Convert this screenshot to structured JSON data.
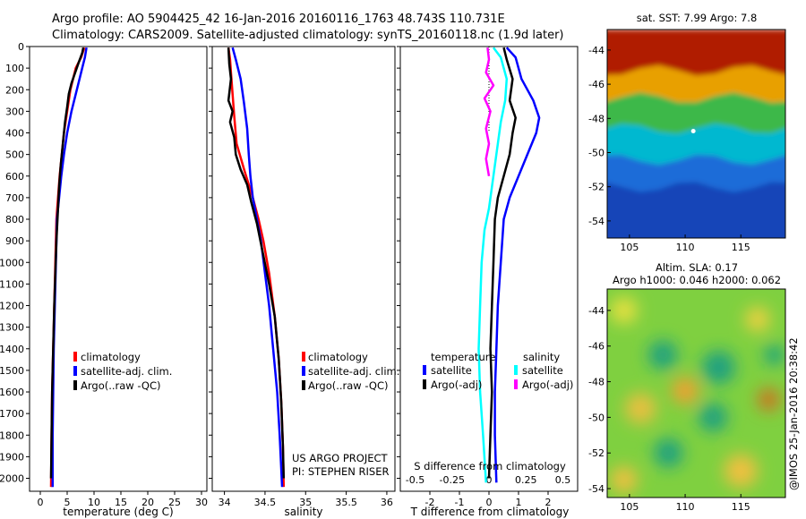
{
  "figure": {
    "title_line1": "Argo profile: AO 5904425_42 16-Jan-2016 20160116_1763 48.743S 110.731E",
    "title_line2": "Climatology: CARS2009. Satellite-adjusted climatology: synTS_20160118.nc (1.9d later)",
    "project_line1": "US ARGO PROJECT",
    "project_line2": "PI: STEPHEN RISER",
    "stamp": "@IMOS 25-Jan-2016 20:38:42"
  },
  "colors": {
    "climatology": "#ff0000",
    "satellite_adj": "#0000ff",
    "argo": "#000000",
    "sat_temp_diff": "#0000ff",
    "sat_sal_diff": "#00ffff",
    "argo_sal_diff": "#ff00ff"
  },
  "chart_data": [
    {
      "id": "temperature_profile",
      "type": "line",
      "xlabel": "temperature (deg C)",
      "xlim": [
        -2,
        31
      ],
      "ylim": [
        2060,
        0
      ],
      "xticks": [
        "0",
        "5",
        "10",
        "15",
        "20",
        "25",
        "30"
      ],
      "yticks": [
        "0",
        "100",
        "200",
        "300",
        "400",
        "500",
        "600",
        "700",
        "800",
        "900",
        "1000",
        "1100",
        "1200",
        "1300",
        "1400",
        "1500",
        "1600",
        "1700",
        "1800",
        "1900",
        "2000"
      ],
      "legend": [
        "climatology",
        "satellite-adj. clim.",
        "Argo(..raw -QC)"
      ],
      "series": [
        {
          "name": "climatology",
          "color_key": "climatology",
          "x": [
            8.2,
            7.6,
            6.6,
            5.6,
            5.0,
            4.4,
            4.0,
            3.6,
            3.3,
            3.0,
            2.8,
            2.6,
            2.4,
            2.2,
            2.1,
            2.0
          ],
          "y": [
            5,
            50,
            100,
            200,
            300,
            400,
            500,
            600,
            700,
            800,
            1000,
            1200,
            1400,
            1600,
            1800,
            2040
          ]
        },
        {
          "name": "satellite-adj. clim.",
          "color_key": "satellite_adj",
          "x": [
            8.6,
            8.3,
            7.8,
            6.8,
            5.8,
            5.0,
            4.4,
            3.9,
            3.5,
            3.1,
            2.9,
            2.7,
            2.5,
            2.4,
            2.3,
            2.3
          ],
          "y": [
            5,
            50,
            100,
            200,
            300,
            400,
            500,
            600,
            700,
            800,
            1000,
            1200,
            1400,
            1600,
            1800,
            2040
          ]
        },
        {
          "name": "Argo(..raw -QC)",
          "color_key": "argo",
          "x": [
            8.0,
            7.8,
            7.2,
            6.5,
            5.8,
            5.3,
            5.0,
            4.6,
            4.2,
            3.8,
            3.5,
            3.3,
            3.0,
            2.8,
            2.6,
            2.4,
            2.2,
            2.1,
            2.0
          ],
          "y": [
            5,
            30,
            70,
            120,
            170,
            220,
            280,
            350,
            450,
            550,
            650,
            750,
            900,
            1050,
            1200,
            1400,
            1600,
            1800,
            2000
          ]
        }
      ]
    },
    {
      "id": "salinity_profile",
      "type": "line",
      "xlabel": "salinity",
      "xlim": [
        33.85,
        36.1
      ],
      "ylim": [
        2060,
        0
      ],
      "xticks": [
        "34",
        "34.5",
        "35",
        "35.5",
        "36"
      ],
      "legend": [
        "climatology",
        "satellite-adj. clim.",
        "Argo(..raw -QC)"
      ],
      "series": [
        {
          "name": "climatology",
          "color_key": "climatology",
          "x": [
            34.05,
            34.07,
            34.08,
            34.1,
            34.12,
            34.15,
            34.25,
            34.35,
            34.42,
            34.48,
            34.55,
            34.62,
            34.67,
            34.7,
            34.72,
            34.73
          ],
          "y": [
            5,
            60,
            120,
            220,
            320,
            450,
            580,
            700,
            800,
            900,
            1050,
            1250,
            1450,
            1650,
            1850,
            2040
          ]
        },
        {
          "name": "satellite-adj. clim.",
          "color_key": "satellite_adj",
          "x": [
            34.1,
            34.14,
            34.2,
            34.24,
            34.28,
            34.3,
            34.32,
            34.35,
            34.4,
            34.45,
            34.5,
            34.55,
            34.6,
            34.65,
            34.68,
            34.71
          ],
          "y": [
            5,
            60,
            150,
            260,
            380,
            500,
            600,
            700,
            800,
            900,
            1050,
            1200,
            1400,
            1600,
            1800,
            2040
          ]
        },
        {
          "name": "Argo(..raw -QC)",
          "color_key": "argo",
          "x": [
            34.05,
            34.06,
            34.08,
            34.05,
            34.1,
            34.07,
            34.12,
            34.14,
            34.2,
            34.28,
            34.33,
            34.4,
            34.47,
            34.55,
            34.62,
            34.67,
            34.7,
            34.72,
            34.73
          ],
          "y": [
            5,
            80,
            150,
            250,
            300,
            350,
            420,
            500,
            570,
            640,
            720,
            820,
            950,
            1100,
            1250,
            1450,
            1650,
            1850,
            2000
          ]
        }
      ]
    },
    {
      "id": "difference_profiles",
      "type": "line",
      "xlabel": "T difference from climatology",
      "xlabel_top": "S difference from climatology",
      "xlim": [
        -3,
        3
      ],
      "ylim": [
        2060,
        0
      ],
      "xticks": [
        "-2",
        "-1",
        "0",
        "1",
        "2"
      ],
      "xticks_top": [
        "-0.5",
        "-0.25",
        "0",
        "0.25",
        "0.5"
      ],
      "legend_headers": [
        "temperature",
        "salinity"
      ],
      "legend": [
        "satellite",
        "Argo(-adj)",
        "satellite",
        "Argo(-adj)"
      ],
      "series": [
        {
          "name": "satellite",
          "group": "temperature",
          "color_key": "sat_temp_diff",
          "x": [
            0.6,
            0.9,
            1.1,
            1.5,
            1.7,
            1.6,
            1.3,
            1.0,
            0.7,
            0.5,
            0.4,
            0.3,
            0.25,
            0.2,
            0.2,
            0.25
          ],
          "y": [
            5,
            50,
            150,
            250,
            330,
            400,
            500,
            600,
            700,
            800,
            1000,
            1200,
            1400,
            1600,
            1800,
            2020
          ]
        },
        {
          "name": "Argo(-adj)",
          "group": "temperature",
          "color_key": "argo",
          "x": [
            0.5,
            0.6,
            0.8,
            0.7,
            0.9,
            0.8,
            0.7,
            0.5,
            0.3,
            0.2,
            0.15,
            0.1,
            0.05,
            0.1,
            0.05,
            0.0
          ],
          "y": [
            5,
            60,
            150,
            250,
            330,
            400,
            500,
            600,
            700,
            800,
            1000,
            1200,
            1400,
            1600,
            1800,
            2000
          ]
        },
        {
          "name": "satellite",
          "group": "salinity",
          "color_key": "sat_sal_diff",
          "x": [
            0.15,
            0.4,
            0.6,
            0.55,
            0.4,
            0.3,
            0.2,
            0.1,
            0.0,
            -0.15,
            -0.25,
            -0.3,
            -0.35,
            -0.3,
            -0.2,
            -0.1
          ],
          "y": [
            5,
            50,
            150,
            250,
            350,
            450,
            550,
            650,
            750,
            850,
            1000,
            1200,
            1400,
            1600,
            1800,
            2020
          ]
        },
        {
          "name": "Argo(-adj)",
          "group": "salinity",
          "color_key": "argo_sal_diff",
          "x": [
            -0.05,
            0.0,
            -0.1,
            0.15,
            -0.15,
            0.05,
            -0.1,
            0.0,
            -0.1,
            0.0
          ],
          "y": [
            5,
            60,
            120,
            180,
            240,
            300,
            380,
            450,
            520,
            600
          ]
        }
      ]
    },
    {
      "id": "sst_map",
      "type": "heatmap",
      "title": "sat. SST: 7.99 Argo: 7.8",
      "xlim": [
        103,
        119
      ],
      "ylim": [
        -55,
        -42.8
      ],
      "xticks": [
        "105",
        "110",
        "115"
      ],
      "yticks": [
        "-44",
        "-46",
        "-48",
        "-50",
        "-52",
        "-54"
      ],
      "bands": [
        {
          "lat_top": -42.8,
          "lat_bottom": -45.2,
          "color": "#b01a00"
        },
        {
          "lat_top": -45.2,
          "lat_bottom": -46.8,
          "color": "#e8a000"
        },
        {
          "lat_top": -46.8,
          "lat_bottom": -48.6,
          "color": "#3cb84a"
        },
        {
          "lat_top": -48.6,
          "lat_bottom": -50.4,
          "color": "#00b8d0"
        },
        {
          "lat_top": -50.4,
          "lat_bottom": -52.0,
          "color": "#1e6cd8"
        },
        {
          "lat_top": -52.0,
          "lat_bottom": -55.0,
          "color": "#1244b8"
        }
      ],
      "argo_position": {
        "lon": 110.731,
        "lat": -48.743
      }
    },
    {
      "id": "sla_map",
      "type": "heatmap",
      "title_line1": "Altim. SLA: 0.17",
      "title_line2": "Argo h1000: 0.046 h2000: 0.062",
      "xlim": [
        103,
        119
      ],
      "ylim": [
        -54.5,
        -42.8
      ],
      "xticks": [
        "105",
        "110",
        "115"
      ],
      "yticks": [
        "-44",
        "-46",
        "-48",
        "-50",
        "-52",
        "-54"
      ],
      "base_color": "#7fd040",
      "blobs": [
        {
          "lon": 104.5,
          "lat": -44.0,
          "r": 1.2,
          "color": "#e8e040"
        },
        {
          "lon": 108.0,
          "lat": -46.5,
          "r": 1.3,
          "color": "#1ea080"
        },
        {
          "lon": 113.0,
          "lat": -47.2,
          "r": 1.5,
          "color": "#1ea080"
        },
        {
          "lon": 116.5,
          "lat": -44.5,
          "r": 1.1,
          "color": "#f0d040"
        },
        {
          "lon": 110.0,
          "lat": -48.5,
          "r": 1.2,
          "color": "#f0a030"
        },
        {
          "lon": 106.0,
          "lat": -49.5,
          "r": 1.4,
          "color": "#e8c040"
        },
        {
          "lon": 112.5,
          "lat": -50.0,
          "r": 1.3,
          "color": "#1ea080"
        },
        {
          "lon": 117.5,
          "lat": -49.0,
          "r": 1.0,
          "color": "#d07020"
        },
        {
          "lon": 108.5,
          "lat": -52.0,
          "r": 1.3,
          "color": "#1ea080"
        },
        {
          "lon": 104.5,
          "lat": -53.5,
          "r": 1.2,
          "color": "#f0c040"
        },
        {
          "lon": 115.0,
          "lat": -53.0,
          "r": 1.5,
          "color": "#f0c040"
        },
        {
          "lon": 118.0,
          "lat": -46.5,
          "r": 0.9,
          "color": "#1ea080"
        }
      ]
    }
  ]
}
